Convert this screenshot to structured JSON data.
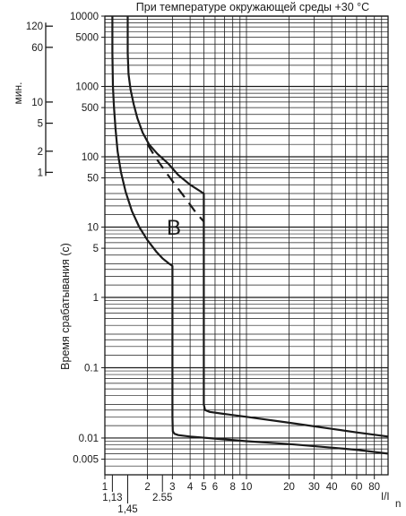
{
  "chart_data": {
    "type": "line",
    "title": "При температуре окружающей среды +30 °C",
    "xlabel_main": "I/I",
    "xlabel_sub": "n",
    "ylabel": "Время срабатывания (с)",
    "minutes_label": "мин.",
    "curve_label": "B",
    "x_scale": "log",
    "y_scale": "log",
    "xlim": [
      1,
      100
    ],
    "ylim": [
      0.003,
      10000
    ],
    "grid": true,
    "x_ticks": [
      "1",
      "2",
      "3",
      "4",
      "5",
      "6",
      "8",
      "10",
      "20",
      "30",
      "40",
      "60",
      "80"
    ],
    "x_tick_values": [
      1,
      2,
      3,
      4,
      5,
      6,
      8,
      10,
      20,
      30,
      40,
      60,
      80
    ],
    "x_extra_ticks": [
      {
        "label": "1,13",
        "value": 1.13
      },
      {
        "label": "1,45",
        "value": 1.45
      },
      {
        "label": "2.55",
        "value": 2.55
      }
    ],
    "y_ticks": [
      "10000",
      "5000",
      "1000",
      "500",
      "100",
      "50",
      "10",
      "5",
      "1",
      "0.1",
      "0.01",
      "0.005"
    ],
    "y_tick_values": [
      10000,
      5000,
      1000,
      500,
      100,
      50,
      10,
      5,
      1,
      0.1,
      0.01,
      0.005
    ],
    "minutes_ticks": [
      "120",
      "60",
      "10",
      "5",
      "2",
      "1"
    ],
    "minutes_tick_values": [
      120,
      60,
      10,
      5,
      2,
      1
    ],
    "series": [
      {
        "style": "solid",
        "x": [
          1.13,
          1.13,
          1.14,
          1.16,
          1.19,
          1.23,
          1.3,
          1.4,
          1.55,
          1.75,
          2.0,
          2.3,
          2.55,
          2.85,
          3.0,
          3.0,
          3.0,
          3.02,
          3.1,
          3.3,
          4.0,
          6.0,
          10,
          20,
          40,
          60,
          100
        ],
        "y": [
          10000,
          3000,
          1000,
          500,
          250,
          120,
          60,
          32,
          17,
          10,
          6.5,
          4.5,
          3.6,
          3.0,
          2.8,
          0.5,
          0.02,
          0.0125,
          0.0115,
          0.011,
          0.0105,
          0.0098,
          0.009,
          0.0082,
          0.0073,
          0.0068,
          0.006
        ]
      },
      {
        "style": "solid",
        "x": [
          1.45,
          1.45,
          1.47,
          1.52,
          1.6,
          1.7,
          1.85,
          2.05,
          2.35,
          2.8,
          3.3,
          4.0,
          5.0,
          5.0,
          5.0,
          5.1,
          5.5,
          7.0,
          10,
          20,
          40,
          60,
          100
        ],
        "y": [
          10000,
          3000,
          1500,
          900,
          550,
          350,
          220,
          150,
          110,
          80,
          55,
          40,
          30,
          2.0,
          0.03,
          0.025,
          0.0235,
          0.022,
          0.02,
          0.0165,
          0.0135,
          0.012,
          0.0105
        ]
      },
      {
        "style": "dashed",
        "x": [
          2.0,
          2.3,
          2.7,
          3.2,
          3.8,
          4.4,
          5.0
        ],
        "y": [
          150,
          95,
          60,
          38,
          24,
          16,
          12
        ]
      }
    ]
  }
}
